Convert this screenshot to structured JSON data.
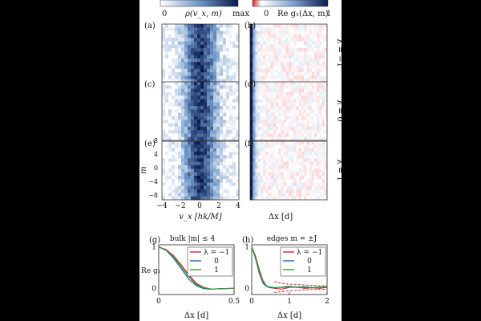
{
  "colorbars": {
    "rho": {
      "min": "0",
      "max": "max",
      "label": "ρ(v_x, m)"
    },
    "g1": {
      "min": "0",
      "max": "1",
      "label": "Re g₁(Δx, m)"
    }
  },
  "panel_letters": [
    "(a)",
    "(b)",
    "(c)",
    "(d)",
    "(e)",
    "(f)",
    "(g)",
    "(h)"
  ],
  "row_labels": [
    "λ = −1",
    "λ = 0",
    "λ = 1"
  ],
  "heatmap_axes": {
    "ylabel": "m",
    "yticks": [
      "8",
      "6",
      "4",
      "2",
      "0",
      "−2",
      "−4",
      "−6",
      "−8"
    ],
    "xticks": [
      "−4",
      "−2",
      "0",
      "2",
      "4"
    ],
    "xlabel_left": "v_x [hk/M]",
    "xlabel_right": "Δx [d]"
  },
  "chart_data": [
    {
      "type": "line",
      "title": "bulk |m| ≤ 4",
      "xlabel": "Δx [d]",
      "ylabel": "Re g₁",
      "xlim": [
        0,
        0.5
      ],
      "ylim": [
        -0.15,
        1.05
      ],
      "xticks": [
        "0",
        "0.5"
      ],
      "yticks": [
        "1",
        "0"
      ],
      "x": [
        0,
        0.05,
        0.1,
        0.15,
        0.2,
        0.25,
        0.3,
        0.35,
        0.4,
        0.5
      ],
      "series": [
        {
          "name": "−1",
          "color": "#d62728",
          "values": [
            1.0,
            0.93,
            0.78,
            0.56,
            0.32,
            0.12,
            0.02,
            -0.02,
            -0.01,
            0.0
          ]
        },
        {
          "name": "0",
          "color": "#1f5fbf",
          "values": [
            1.0,
            0.91,
            0.72,
            0.47,
            0.22,
            0.06,
            -0.01,
            -0.02,
            -0.01,
            0.0
          ]
        },
        {
          "name": "1",
          "color": "#2ca02c",
          "values": [
            1.0,
            0.92,
            0.75,
            0.52,
            0.28,
            0.09,
            0.01,
            -0.02,
            -0.01,
            0.0
          ]
        }
      ],
      "legend": {
        "header": "λ = −1",
        "entries": [
          "0",
          "1"
        ]
      }
    },
    {
      "type": "line",
      "title": "edges m = ±J",
      "xlabel": "Δx [d]",
      "ylabel": "",
      "xlim": [
        0,
        2
      ],
      "ylim": [
        -0.15,
        1.05
      ],
      "xticks": [
        "0",
        "1",
        "2"
      ],
      "yticks": [
        "1",
        "0"
      ],
      "x": [
        0,
        0.1,
        0.2,
        0.3,
        0.4,
        0.5,
        0.6,
        0.8,
        1.0,
        1.2,
        1.4,
        1.6,
        1.8,
        2.0
      ],
      "series": [
        {
          "name": "−1",
          "color": "#d62728",
          "values": [
            1.0,
            0.78,
            0.45,
            0.18,
            0.05,
            0.02,
            0.0,
            -0.02,
            0.02,
            0.03,
            0.0,
            0.01,
            0.0,
            0.02
          ]
        },
        {
          "name": "0",
          "color": "#1f5fbf",
          "values": [
            1.0,
            0.72,
            0.36,
            0.12,
            0.04,
            0.01,
            0.01,
            0.03,
            0.05,
            0.03,
            0.04,
            0.02,
            0.03,
            0.04
          ]
        },
        {
          "name": "1",
          "color": "#2ca02c",
          "values": [
            1.0,
            0.75,
            0.4,
            0.15,
            0.05,
            0.03,
            0.02,
            0.02,
            0.03,
            0.02,
            0.02,
            0.01,
            0.03,
            0.02
          ]
        },
        {
          "name": "ref−1",
          "color": "#d62728",
          "dashed": true,
          "values": [
            null,
            null,
            null,
            null,
            null,
            null,
            0.16,
            0.12,
            0.1,
            0.09,
            0.08,
            0.07,
            0.06,
            0.06
          ]
        },
        {
          "name": "ref1",
          "color": "#d62728",
          "dashed": true,
          "values": [
            null,
            null,
            null,
            null,
            null,
            null,
            -0.1,
            -0.08,
            -0.06,
            -0.05,
            -0.04,
            -0.03,
            -0.03,
            -0.02
          ]
        }
      ],
      "legend": {
        "header": "λ = −1",
        "entries": [
          "0",
          "1"
        ]
      }
    }
  ]
}
